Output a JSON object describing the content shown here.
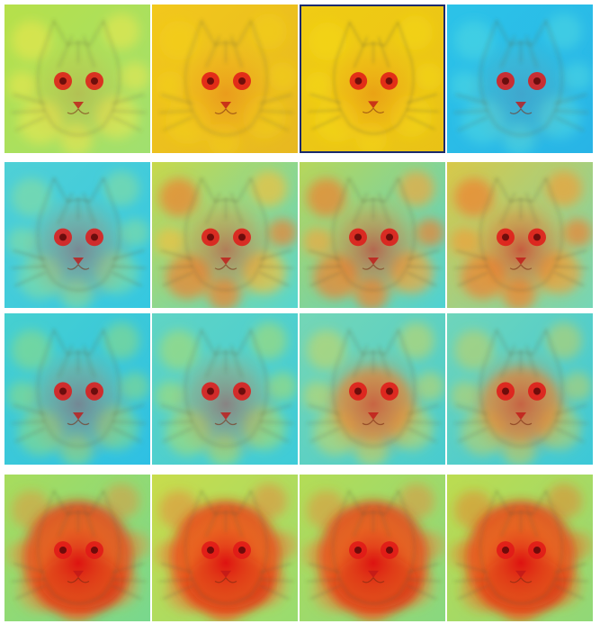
{
  "figure": {
    "description_rows": 4,
    "columns": 4,
    "selected_panel": [
      0,
      2
    ],
    "rows": [
      {
        "panels": [
          {
            "base": "#b6e04a",
            "tint": "#ffe94a",
            "hot": 0.15,
            "spread": "eyes",
            "cool": "#a0e070"
          },
          {
            "base": "#f2c81c",
            "tint": "#f5d21a",
            "hot": 0.2,
            "spread": "eyes",
            "cool": "#e7b820"
          },
          {
            "base": "#f0cc14",
            "tint": "#f7dc10",
            "hot": 0.2,
            "spread": "eyes",
            "cool": "#e9c216"
          },
          {
            "base": "#2cc3e8",
            "tint": "#58dde0",
            "hot": 0.12,
            "spread": "eyes",
            "cool": "#28b4e6"
          }
        ]
      },
      {
        "panels": [
          {
            "base": "#4fd0d6",
            "tint": "#9fe28a",
            "hot": 0.35,
            "spread": "eyes",
            "cool": "#35c7e0"
          },
          {
            "base": "#c8d84a",
            "tint": "#f0c040",
            "hot": 0.45,
            "spread": "patchy",
            "cool": "#56d6cf"
          },
          {
            "base": "#b7d65a",
            "tint": "#f0a840",
            "hot": 0.55,
            "spread": "patchy",
            "cool": "#4fd2d3"
          },
          {
            "base": "#d8c848",
            "tint": "#f0a038",
            "hot": 0.6,
            "spread": "patchy",
            "cool": "#74d6b6"
          }
        ]
      },
      {
        "panels": [
          {
            "base": "#46d0d0",
            "tint": "#a8e068",
            "hot": 0.35,
            "spread": "eyes",
            "cool": "#2ec0e4"
          },
          {
            "base": "#60d4c4",
            "tint": "#c8e050",
            "hot": 0.4,
            "spread": "eyes",
            "cool": "#3ecbd8"
          },
          {
            "base": "#74d6b6",
            "tint": "#e6d848",
            "hot": 0.45,
            "spread": "face",
            "cool": "#48cccf"
          },
          {
            "base": "#6fd5ba",
            "tint": "#e0d048",
            "hot": 0.45,
            "spread": "face",
            "cool": "#3cc8d8"
          }
        ]
      },
      {
        "panels": [
          {
            "base": "#a8dc5c",
            "tint": "#f08830",
            "hot": 0.85,
            "spread": "head",
            "cool": "#78d88e"
          },
          {
            "base": "#c8dc4c",
            "tint": "#f07830",
            "hot": 0.9,
            "spread": "head",
            "cool": "#98dc70"
          },
          {
            "base": "#b4dc56",
            "tint": "#f08030",
            "hot": 0.85,
            "spread": "head",
            "cool": "#88d880"
          },
          {
            "base": "#bcdc50",
            "tint": "#f07428",
            "hot": 0.9,
            "spread": "head",
            "cool": "#90d878"
          }
        ]
      }
    ]
  }
}
